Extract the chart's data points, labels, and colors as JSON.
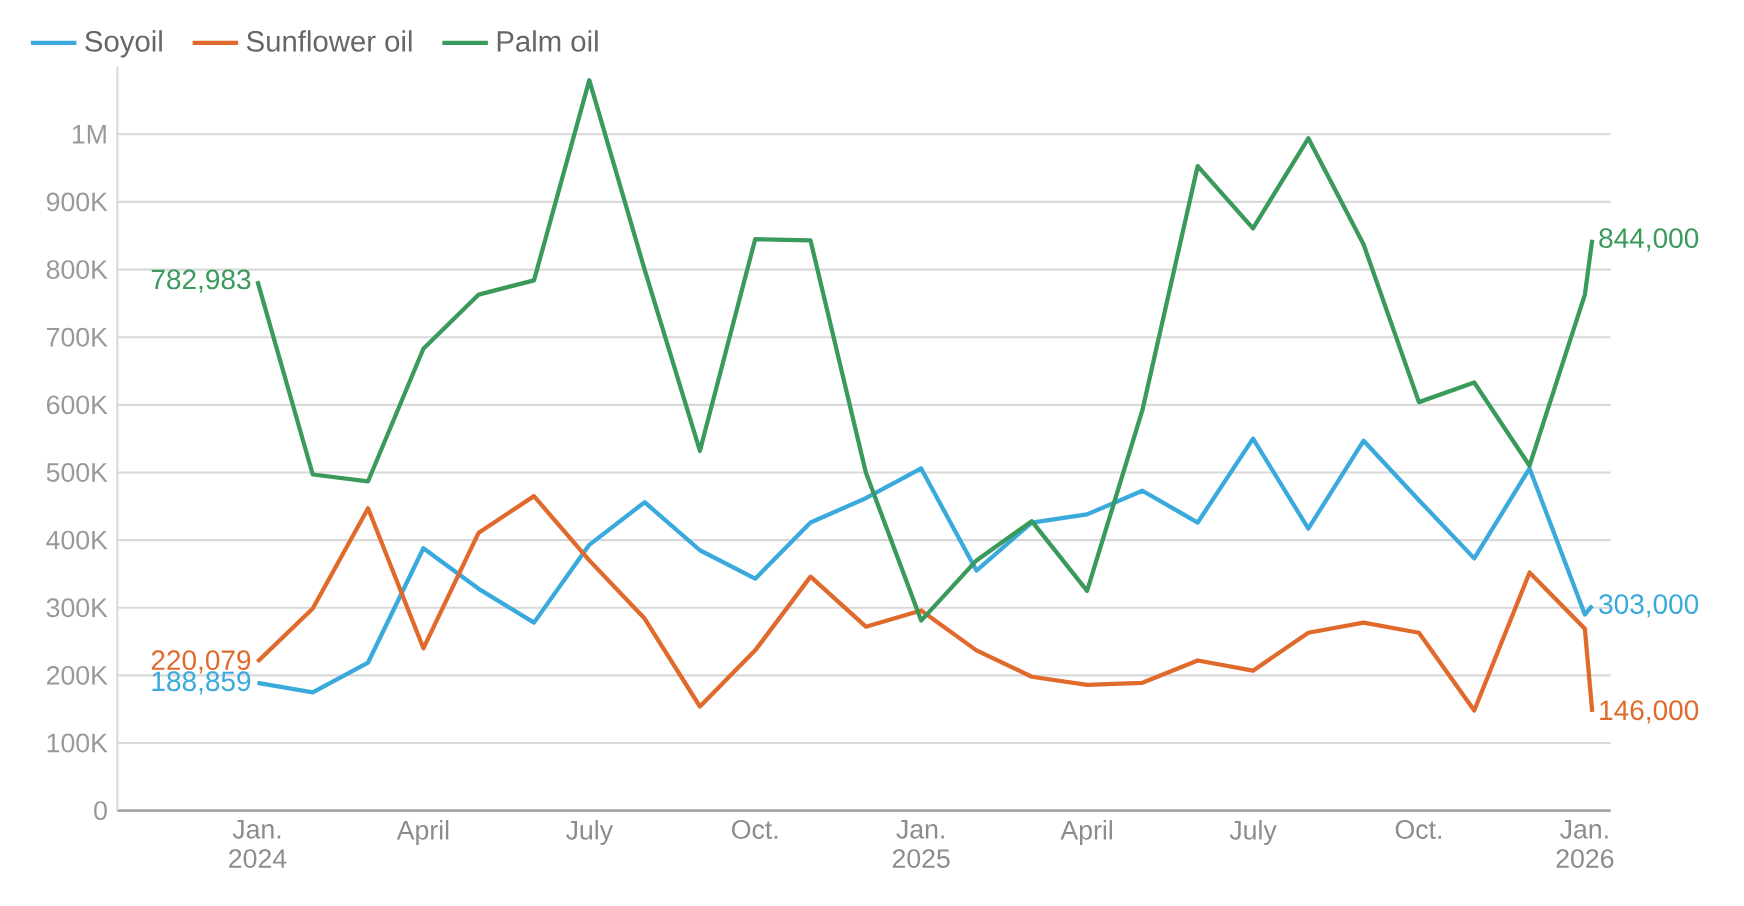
{
  "chart_data": {
    "type": "line",
    "x": [
      "2024-01",
      "2024-02",
      "2024-03",
      "2024-04",
      "2024-05",
      "2024-06",
      "2024-07",
      "2024-08",
      "2024-09",
      "2024-10",
      "2024-11",
      "2024-12",
      "2025-01",
      "2025-02",
      "2025-03",
      "2025-04",
      "2025-05",
      "2025-06",
      "2025-07",
      "2025-08",
      "2025-09",
      "2025-10",
      "2025-11",
      "2025-12",
      "2026-01",
      "2026-01-05"
    ],
    "series": [
      {
        "name": "Soyoil",
        "color": "#3aa9dc",
        "values": [
          188859,
          175000,
          219000,
          388000,
          328000,
          278000,
          393000,
          456000,
          385000,
          343000,
          426000,
          462000,
          506000,
          355000,
          426000,
          438000,
          473000,
          426000,
          550000,
          417000,
          547000,
          459000,
          373000,
          506000,
          290000,
          303000
        ],
        "value_labels": [
          "188,859",
          null,
          null,
          null,
          null,
          null,
          null,
          null,
          null,
          null,
          null,
          null,
          null,
          null,
          null,
          null,
          null,
          null,
          null,
          null,
          null,
          null,
          null,
          null,
          null,
          "303,000"
        ]
      },
      {
        "name": "Sunflower oil",
        "color": "#e06a2c",
        "values": [
          220079,
          299000,
          447000,
          240000,
          411000,
          465000,
          370000,
          284000,
          154000,
          237000,
          346000,
          272000,
          296000,
          237000,
          198000,
          186000,
          189000,
          222000,
          207000,
          263000,
          278000,
          263000,
          148000,
          352000,
          269000,
          146000
        ],
        "value_labels": [
          "220,079",
          null,
          null,
          null,
          null,
          null,
          null,
          null,
          null,
          null,
          null,
          null,
          null,
          null,
          null,
          null,
          null,
          null,
          null,
          null,
          null,
          null,
          null,
          null,
          null,
          "146,000"
        ]
      },
      {
        "name": "Palm oil",
        "color": "#3a9a5b",
        "values": [
          782983,
          497000,
          487000,
          683000,
          763000,
          784000,
          1080000,
          800000,
          532000,
          845000,
          843000,
          500000,
          281000,
          370000,
          428000,
          325000,
          592000,
          953000,
          861000,
          994000,
          837000,
          604000,
          633000,
          510000,
          763000,
          844000
        ],
        "value_labels": [
          "782,983",
          null,
          null,
          null,
          null,
          null,
          null,
          null,
          null,
          null,
          null,
          null,
          null,
          null,
          null,
          null,
          null,
          null,
          null,
          null,
          null,
          null,
          null,
          null,
          null,
          "844,000"
        ]
      }
    ],
    "xlim": [
      "2023-10-15",
      "2026-01-15"
    ],
    "xticks": [
      {
        "value": "2024-01",
        "label": "Jan. 2024"
      },
      {
        "value": "2024-04",
        "label": "April"
      },
      {
        "value": "2024-07",
        "label": "July"
      },
      {
        "value": "2024-10",
        "label": "Oct."
      },
      {
        "value": "2025-01",
        "label": "Jan. 2025"
      },
      {
        "value": "2025-04",
        "label": "April"
      },
      {
        "value": "2025-07",
        "label": "July"
      },
      {
        "value": "2025-10",
        "label": "Oct."
      },
      {
        "value": "2026-01",
        "label": "Jan. 2026"
      }
    ],
    "ylim": [
      0,
      1100000
    ],
    "yticks": [
      0,
      {
        "value": 100000,
        "label": "100K"
      },
      {
        "value": 200000,
        "label": "200K"
      },
      {
        "value": 300000,
        "label": "300K"
      },
      {
        "value": 400000,
        "label": "400K"
      },
      {
        "value": 500000,
        "label": "500K"
      },
      {
        "value": 600000,
        "label": "600K"
      },
      {
        "value": 700000,
        "label": "700K"
      },
      {
        "value": 800000,
        "label": "800K"
      },
      {
        "value": 900000,
        "label": "900K"
      },
      {
        "value": 1000000,
        "label": "1M"
      }
    ],
    "grid": "y",
    "legend": "top left",
    "marker": "none",
    "line_style": "solid"
  }
}
